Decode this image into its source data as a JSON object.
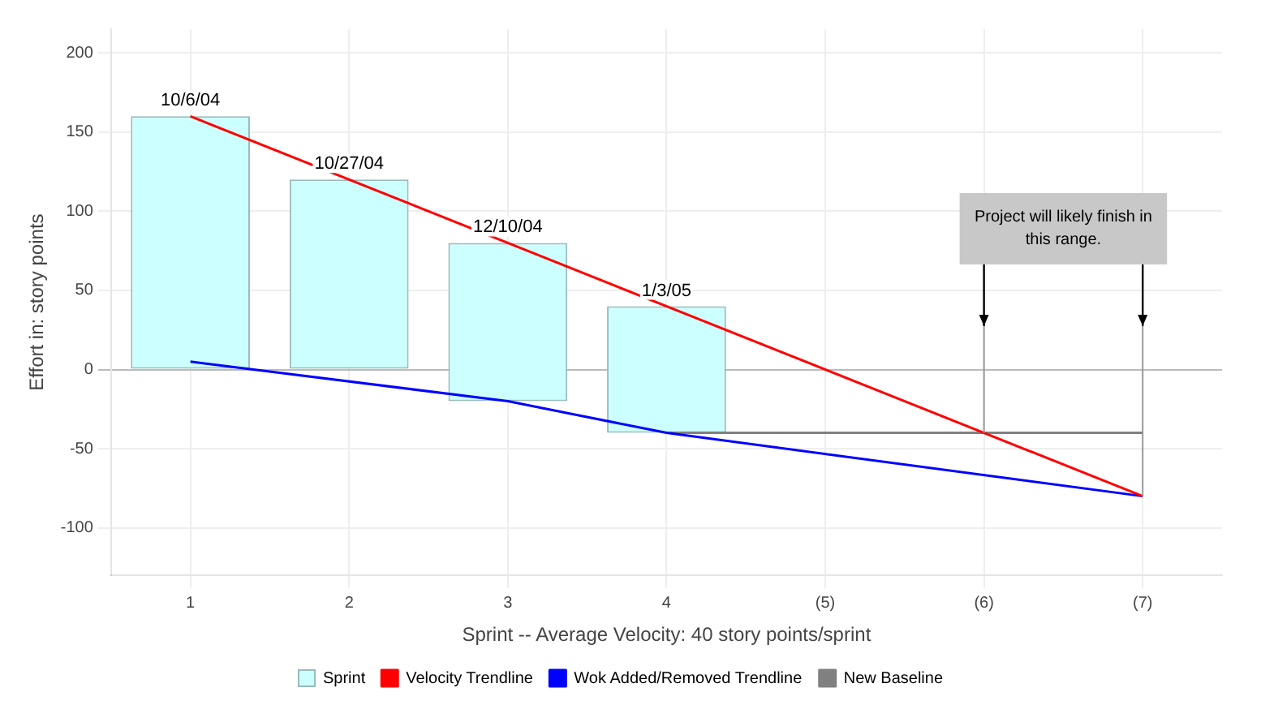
{
  "chart_data": {
    "type": "bar",
    "categories": [
      "1",
      "2",
      "3",
      "4",
      "(5)",
      "(6)",
      "(7)"
    ],
    "xlabel": "Sprint -- Average Velocity: 40 story points/sprint",
    "ylabel": "Effort in: story points",
    "ylim": [
      -130,
      215
    ],
    "yticks": [
      -100,
      -50,
      0,
      50,
      100,
      150,
      200
    ],
    "grid": true,
    "legend": "bottom",
    "series": [
      {
        "name": "Sprint",
        "color": "#ccffff",
        "values": [
          160,
          120,
          100,
          80,
          null,
          null,
          null
        ],
        "base": [
          0,
          0,
          -20,
          -40,
          null,
          null,
          null
        ],
        "value_labels": [
          "10/6/04",
          "10/27/04",
          "12/10/04",
          "1/3/05",
          null,
          null,
          null
        ]
      },
      {
        "name": "Velocity Trendline",
        "type": "line",
        "color": "#ff0000",
        "values": [
          160,
          null,
          null,
          null,
          null,
          null,
          -80
        ]
      },
      {
        "name": "Wok Added/Removed Trendline",
        "type": "line",
        "color": "#0000ff",
        "values": [
          5,
          null,
          -20,
          -40,
          null,
          null,
          -80
        ]
      },
      {
        "name": "New Baseline",
        "type": "line",
        "color": "#808080",
        "values": [
          null,
          null,
          null,
          -40,
          -40,
          -40,
          -40
        ]
      }
    ],
    "annotations": [
      "Project will likely finish in this range."
    ]
  }
}
